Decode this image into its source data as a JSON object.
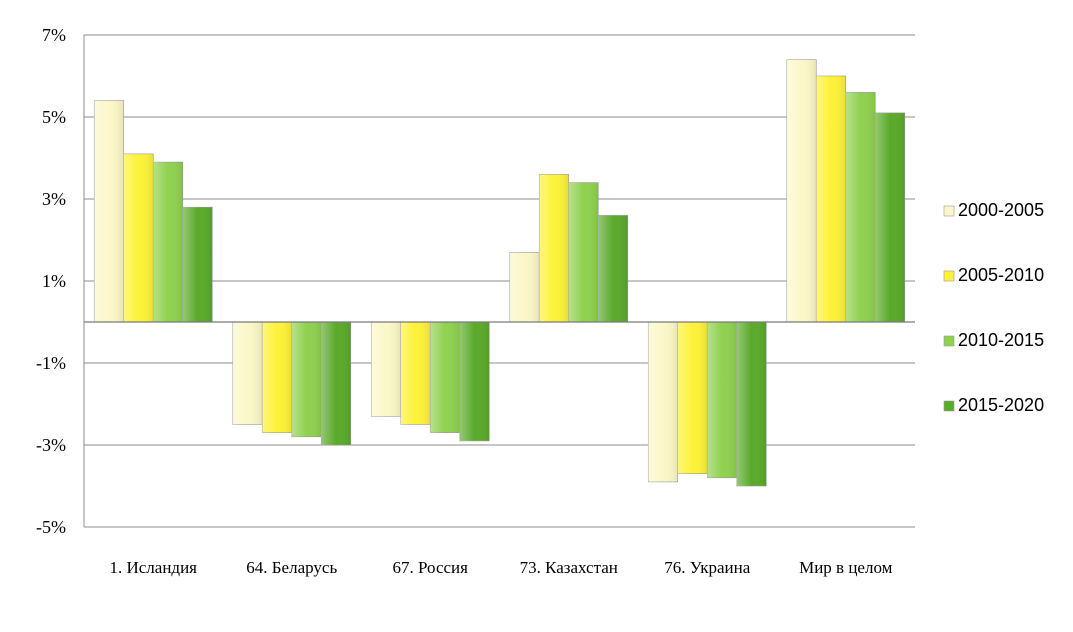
{
  "chart_data": {
    "type": "bar",
    "categories": [
      "1. Исландия",
      "64. Беларусь",
      "67. Россия",
      "73. Казахстан",
      "76. Украина",
      "Мир в целом"
    ],
    "series": [
      {
        "name": "2000-2005",
        "color": "#fbf7c8",
        "values": [
          5.4,
          -2.5,
          -2.3,
          1.7,
          -3.9,
          6.4
        ]
      },
      {
        "name": "2005-2010",
        "color": "#fdf238",
        "values": [
          4.1,
          -2.7,
          -2.5,
          3.6,
          -3.7,
          6.0
        ]
      },
      {
        "name": "2010-2015",
        "color": "#8fd14f",
        "values": [
          3.9,
          -2.8,
          -2.7,
          3.4,
          -3.8,
          5.6
        ]
      },
      {
        "name": "2015-2020",
        "color": "#5aaa2a",
        "values": [
          2.8,
          -3.0,
          -2.9,
          2.6,
          -4.0,
          5.1
        ]
      }
    ],
    "y_ticks": [
      "7%",
      "5%",
      "3%",
      "1%",
      "-1%",
      "-3%",
      "-5%"
    ],
    "tick_values": [
      7,
      5,
      3,
      1,
      -1,
      -3,
      -5
    ],
    "ylim": [
      -5,
      7
    ],
    "grid": true,
    "legend_position": "right",
    "title": "",
    "xlabel": "",
    "ylabel": ""
  }
}
